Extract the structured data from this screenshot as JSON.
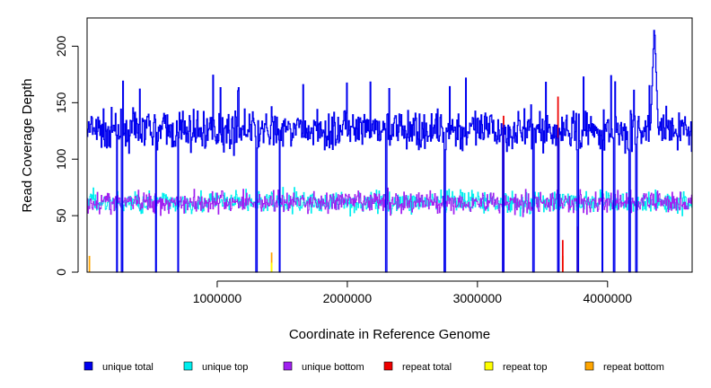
{
  "chart_data": {
    "type": "line",
    "title": "",
    "xlabel": "Coordinate in Reference Genome",
    "ylabel": "Read Coverage Depth",
    "xlim": [
      0,
      4650000
    ],
    "ylim": [
      0,
      225
    ],
    "x_ticks": [
      1000000,
      2000000,
      3000000,
      4000000
    ],
    "x_tick_labels": [
      "1000000",
      "2000000",
      "3000000",
      "4000000"
    ],
    "y_ticks": [
      0,
      50,
      100,
      150,
      200
    ],
    "y_tick_labels": [
      "0",
      "50",
      "100",
      "150",
      "200"
    ],
    "grid": false,
    "legend_position": "bottom",
    "dip_positions": [
      230000,
      270000,
      530000,
      700000,
      1300000,
      1480000,
      2300000,
      2750000,
      3200000,
      3430000,
      3620000,
      3770000,
      3960000,
      4050000,
      4170000,
      4220000
    ],
    "spike_position": 4360000,
    "series": [
      {
        "name": "unique total",
        "color": "#0000ee",
        "baseline": 125,
        "noise": 14,
        "spike_peak": 220
      },
      {
        "name": "unique top",
        "color": "#00eeee",
        "baseline": 62,
        "noise": 8
      },
      {
        "name": "unique bottom",
        "color": "#a020f0",
        "baseline": 62,
        "noise": 8
      },
      {
        "name": "repeat total",
        "color": "#ee0000",
        "baseline": 0,
        "peaks": [
          [
            3620000,
            155
          ],
          [
            3655000,
            28
          ],
          [
            3770000,
            40
          ],
          [
            3200000,
            138
          ]
        ]
      },
      {
        "name": "repeat top",
        "color": "#ffff00",
        "baseline": 0,
        "peaks": [
          [
            1420000,
            8
          ],
          [
            3770000,
            10
          ]
        ]
      },
      {
        "name": "repeat bottom",
        "color": "#ffa500",
        "baseline": 0,
        "peaks": [
          [
            20000,
            14
          ],
          [
            1420000,
            17
          ],
          [
            3655000,
            14
          ],
          [
            3770000,
            20
          ]
        ]
      }
    ]
  }
}
